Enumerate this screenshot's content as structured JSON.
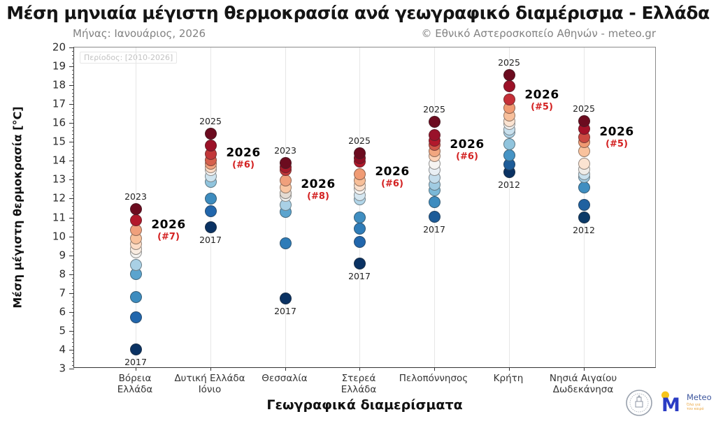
{
  "header": {
    "title": "Μέση μηνιαία μέγιστη θερμοκρασία ανά γεωγραφικό διαμέρισμα - Ελλάδα",
    "subtitle_left": "Μήνας: Ιανουάριος, 2026",
    "subtitle_right": "© Εθνικό Αστεροσκοπείο Αθηνών - meteo.gr"
  },
  "footer": {
    "meteo_logo_text": "Meteo",
    "meteo_logo_m": "M",
    "meteo_tagline_line1": "Όλα για",
    "meteo_tagline_line2": "τον καιρό"
  },
  "chart_data": {
    "type": "scatter",
    "title": "Μέση μηνιαία μέγιστη θερμοκρασία ανά γεωγραφικό διαμέρισμα - Ελλάδα",
    "xlabel": "Γεωγραφικά διαμερίσματα",
    "ylabel": "Μέση μέγιστη θερμοκρασία [°C]",
    "period_note": "Περίοδος: [2010-2026]",
    "ylim": [
      3,
      20
    ],
    "ytick_major_step": 1,
    "ytick_minor_step": 0.2,
    "grid": "vertical-only",
    "legend": "none",
    "anno_year": "2026",
    "anno_rank_color": "#d32020",
    "regions": [
      {
        "label": "Βόρεια\nΕλλάδα",
        "top_year": "2023",
        "bottom_year": "2017",
        "rank_2026": "(#7)",
        "anno_v": 10.55,
        "dots": [
          {
            "v": 4.0,
            "c": "#0a3263"
          },
          {
            "v": 5.7,
            "c": "#2166ac"
          },
          {
            "v": 6.8,
            "c": "#3d8cbf"
          },
          {
            "v": 8.0,
            "c": "#5ca4ce"
          },
          {
            "v": 8.5,
            "c": "#a9d0e5"
          },
          {
            "v": 9.15,
            "c": "#f3f2f0"
          },
          {
            "v": 9.35,
            "c": "#f9ece1"
          },
          {
            "v": 9.6,
            "c": "#fcdcc6"
          },
          {
            "v": 9.9,
            "c": "#f9c29d"
          },
          {
            "v": 10.35,
            "c": "#f0a07c"
          },
          {
            "v": 10.85,
            "c": "#b2182b"
          },
          {
            "v": 11.45,
            "c": "#6c0b1f"
          }
        ]
      },
      {
        "label": "Δυτική Ελλάδα\nΙόνιο",
        "top_year": "2025",
        "bottom_year": "2017",
        "rank_2026": "(#6)",
        "anno_v": 14.35,
        "dots": [
          {
            "v": 10.5,
            "c": "#0a3263"
          },
          {
            "v": 11.35,
            "c": "#2166ac"
          },
          {
            "v": 12.0,
            "c": "#3d8cbf"
          },
          {
            "v": 12.9,
            "c": "#90c4dd"
          },
          {
            "v": 13.2,
            "c": "#cfe4ef"
          },
          {
            "v": 13.5,
            "c": "#f5f4f3"
          },
          {
            "v": 13.65,
            "c": "#fcdcc6"
          },
          {
            "v": 13.85,
            "c": "#f3a380"
          },
          {
            "v": 14.05,
            "c": "#d6604d"
          },
          {
            "v": 14.35,
            "c": "#c23739"
          },
          {
            "v": 14.8,
            "c": "#9c1127"
          },
          {
            "v": 15.45,
            "c": "#6c0b1f"
          }
        ]
      },
      {
        "label": "Θεσσαλία",
        "top_year": "2023",
        "bottom_year": "2017",
        "rank_2026": "(#8)",
        "anno_v": 12.7,
        "dots": [
          {
            "v": 6.7,
            "c": "#0a3263"
          },
          {
            "v": 9.65,
            "c": "#2e7cb8"
          },
          {
            "v": 11.3,
            "c": "#5ca4ce"
          },
          {
            "v": 11.65,
            "c": "#a9d0e5"
          },
          {
            "v": 12.15,
            "c": "#efefed"
          },
          {
            "v": 12.3,
            "c": "#e3dbd3"
          },
          {
            "v": 12.6,
            "c": "#f9c6a3"
          },
          {
            "v": 12.95,
            "c": "#f0a07c"
          },
          {
            "v": 13.5,
            "c": "#c23739"
          },
          {
            "v": 13.65,
            "c": "#a81b2b"
          },
          {
            "v": 13.9,
            "c": "#6c0b1f"
          }
        ]
      },
      {
        "label": "Στερεά\nΕλλάδα",
        "top_year": "2025",
        "bottom_year": "2017",
        "rank_2026": "(#6)",
        "anno_v": 13.35,
        "dots": [
          {
            "v": 8.55,
            "c": "#0a3263"
          },
          {
            "v": 9.7,
            "c": "#2166ac"
          },
          {
            "v": 10.4,
            "c": "#2e7cb8"
          },
          {
            "v": 11.0,
            "c": "#3f8ec1"
          },
          {
            "v": 11.95,
            "c": "#b2d6e9"
          },
          {
            "v": 12.2,
            "c": "#d5e7f1"
          },
          {
            "v": 12.5,
            "c": "#f4f3f1"
          },
          {
            "v": 12.7,
            "c": "#fbe0cd"
          },
          {
            "v": 12.95,
            "c": "#f8bf99"
          },
          {
            "v": 13.3,
            "c": "#f09b74"
          },
          {
            "v": 13.95,
            "c": "#b2182b"
          },
          {
            "v": 14.15,
            "c": "#8f0e24"
          },
          {
            "v": 14.4,
            "c": "#6c0b1f"
          }
        ]
      },
      {
        "label": "Πελοπόννησος",
        "top_year": "2025",
        "bottom_year": "2017",
        "rank_2026": "(#6)",
        "anno_v": 14.8,
        "dots": [
          {
            "v": 11.05,
            "c": "#1d5c99"
          },
          {
            "v": 11.8,
            "c": "#3d8cbf"
          },
          {
            "v": 12.45,
            "c": "#7ab8d7"
          },
          {
            "v": 12.75,
            "c": "#a0cbe2"
          },
          {
            "v": 13.1,
            "c": "#c4ddec"
          },
          {
            "v": 13.5,
            "c": "#e9eff4"
          },
          {
            "v": 13.85,
            "c": "#f6f4f2"
          },
          {
            "v": 14.25,
            "c": "#fcd2b7"
          },
          {
            "v": 14.5,
            "c": "#f2a67f"
          },
          {
            "v": 14.85,
            "c": "#d15749"
          },
          {
            "v": 15.05,
            "c": "#b2182b"
          },
          {
            "v": 15.35,
            "c": "#99122a"
          },
          {
            "v": 16.05,
            "c": "#6c0b1f"
          }
        ]
      },
      {
        "label": "Κρήτη",
        "top_year": "2025",
        "bottom_year": "2012",
        "rank_2026": "(#5)",
        "anno_v": 17.4,
        "dots": [
          {
            "v": 13.4,
            "c": "#0a3263"
          },
          {
            "v": 13.8,
            "c": "#1d5c99"
          },
          {
            "v": 14.3,
            "c": "#4694c5"
          },
          {
            "v": 14.9,
            "c": "#90c4dd"
          },
          {
            "v": 15.5,
            "c": "#aed3e7"
          },
          {
            "v": 15.65,
            "c": "#c9e1ee"
          },
          {
            "v": 15.95,
            "c": "#f0f1f0"
          },
          {
            "v": 16.1,
            "c": "#fbe3d1"
          },
          {
            "v": 16.4,
            "c": "#f7bf9b"
          },
          {
            "v": 16.8,
            "c": "#f09b73"
          },
          {
            "v": 17.25,
            "c": "#c62f37"
          },
          {
            "v": 17.95,
            "c": "#9c1127"
          },
          {
            "v": 18.55,
            "c": "#6c0b1f"
          }
        ]
      },
      {
        "label": "Νησιά Αιγαίου\nΔωδεκάνησα",
        "top_year": "2025",
        "bottom_year": "2012",
        "rank_2026": "(#5)",
        "anno_v": 15.45,
        "dots": [
          {
            "v": 11.0,
            "c": "#0b3a68"
          },
          {
            "v": 11.65,
            "c": "#1f61a0"
          },
          {
            "v": 12.6,
            "c": "#3f8ec1"
          },
          {
            "v": 13.15,
            "c": "#9fcae1"
          },
          {
            "v": 13.3,
            "c": "#c9e1ee"
          },
          {
            "v": 13.55,
            "c": "#efece8"
          },
          {
            "v": 13.85,
            "c": "#fbe3d1"
          },
          {
            "v": 14.5,
            "c": "#f9c29d"
          },
          {
            "v": 15.0,
            "c": "#f09a72"
          },
          {
            "v": 15.25,
            "c": "#cc4a42"
          },
          {
            "v": 15.7,
            "c": "#a51128"
          },
          {
            "v": 16.1,
            "c": "#6c0b1f"
          }
        ]
      }
    ]
  }
}
